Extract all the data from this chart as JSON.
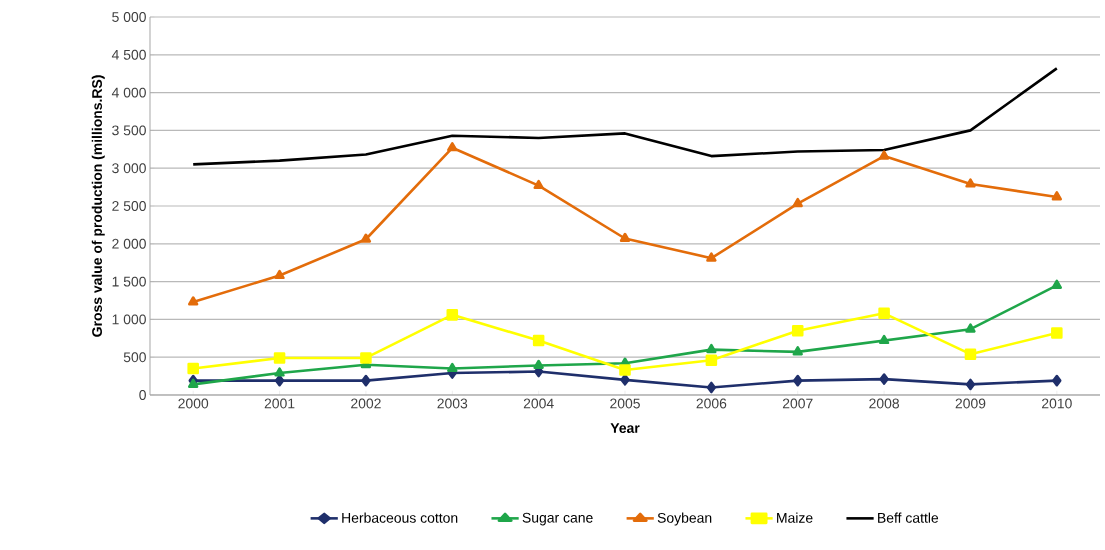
{
  "chart_data": {
    "type": "line",
    "xlabel": "Year",
    "ylabel": "Gross value of production (millions.RS)",
    "categories": [
      "2000",
      "2001",
      "2002",
      "2003",
      "2004",
      "2005",
      "2006",
      "2007",
      "2008",
      "2009",
      "2010"
    ],
    "ylim": [
      0,
      5000
    ],
    "yticks": [
      0,
      500,
      {
        "value": 1000,
        "label": "1 000"
      },
      {
        "value": 1500,
        "label": "1 500"
      },
      {
        "value": 2000,
        "label": "2 000"
      },
      {
        "value": 2500,
        "label": "2 500"
      },
      {
        "value": 3000,
        "label": "3 000"
      },
      {
        "value": 3500,
        "label": "3 500"
      },
      {
        "value": 4000,
        "label": "4 000"
      },
      {
        "value": 4500,
        "label": "4 500"
      },
      {
        "value": 5000,
        "label": "5 000"
      }
    ],
    "grid": "y",
    "legend": "bottom",
    "series": [
      {
        "name": "Herbaceous cotton",
        "color": "#1f2f6b",
        "marker": "diamond",
        "values": [
          190,
          190,
          190,
          290,
          310,
          200,
          100,
          190,
          210,
          140,
          190
        ]
      },
      {
        "name": "Sugar cane",
        "color": "#1fa64a",
        "marker": "triangle",
        "values": [
          140,
          290,
          400,
          350,
          390,
          420,
          600,
          570,
          720,
          870,
          1450
        ]
      },
      {
        "name": "Soybean",
        "color": "#e36c0a",
        "marker": "triangle",
        "values": [
          1230,
          1580,
          2060,
          3270,
          2770,
          2070,
          1810,
          2530,
          3160,
          2790,
          2620
        ]
      },
      {
        "name": "Maize",
        "color": "#ffff00",
        "marker": "square",
        "values": [
          350,
          490,
          490,
          1060,
          720,
          330,
          460,
          850,
          1080,
          540,
          820
        ]
      },
      {
        "name": "Beff cattle",
        "color": "#000000",
        "marker": "none",
        "values": [
          3050,
          3100,
          3180,
          3430,
          3400,
          3460,
          3160,
          3220,
          3240,
          3500,
          4320
        ]
      }
    ]
  }
}
